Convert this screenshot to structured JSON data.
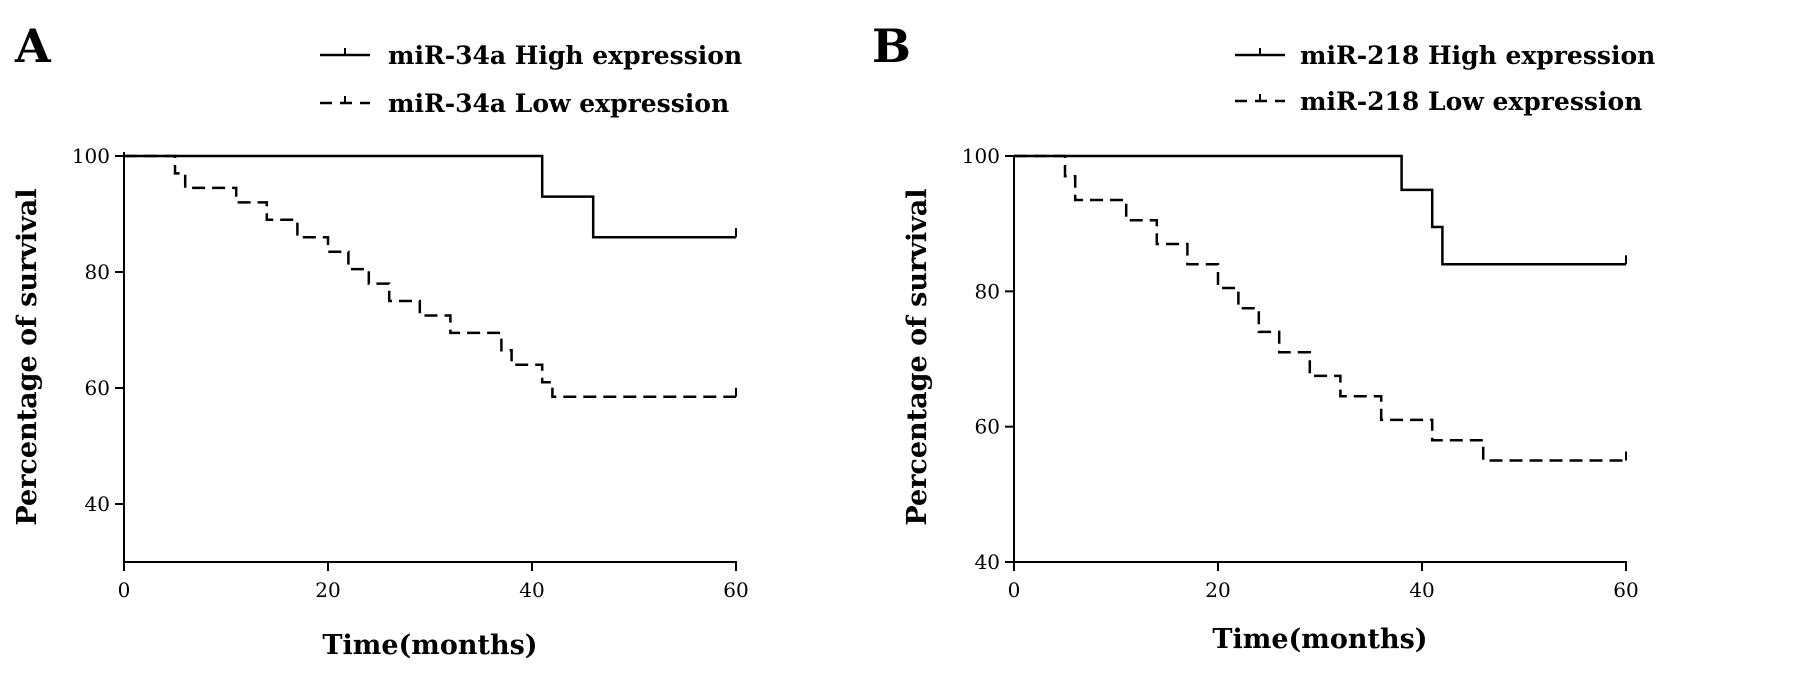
{
  "chart_data": [
    {
      "type": "line",
      "panel_label": "A",
      "xlabel": "Time(months)",
      "ylabel": "Percentage of survival",
      "xlim": [
        0,
        60
      ],
      "ylim": [
        30,
        100
      ],
      "xticks": [
        0,
        20,
        40,
        60
      ],
      "yticks": [
        40,
        60,
        80,
        100
      ],
      "legend_position": "top",
      "series": [
        {
          "name": "miR-34a High expression",
          "style": "solid",
          "step": true,
          "x": [
            0,
            41,
            46,
            60
          ],
          "y": [
            100,
            93,
            86,
            86
          ]
        },
        {
          "name": "miR-34a Low expression",
          "style": "dashed",
          "step": true,
          "x": [
            0,
            5,
            6,
            11,
            14,
            17,
            20,
            22,
            24,
            26,
            29,
            32,
            37,
            38,
            41,
            42,
            60
          ],
          "y": [
            100,
            97,
            94.5,
            92,
            89,
            86,
            83.5,
            80.5,
            78,
            75,
            72.5,
            69.5,
            66.5,
            64,
            61,
            58.5,
            58.5
          ]
        }
      ]
    },
    {
      "type": "line",
      "panel_label": "B",
      "xlabel": "Time(months)",
      "ylabel": "Percentage of survival",
      "xlim": [
        0,
        60
      ],
      "ylim": [
        40,
        100
      ],
      "xticks": [
        0,
        20,
        40,
        60
      ],
      "yticks": [
        40,
        60,
        80,
        100
      ],
      "legend_position": "top",
      "series": [
        {
          "name": "miR-218 High expression",
          "style": "solid",
          "step": true,
          "x": [
            0,
            38,
            41,
            42,
            60
          ],
          "y": [
            100,
            95,
            89.5,
            84,
            84
          ]
        },
        {
          "name": "miR-218 Low expression",
          "style": "dashed",
          "step": true,
          "x": [
            0,
            5,
            6,
            11,
            14,
            17,
            20,
            22,
            24,
            26,
            29,
            32,
            36,
            41,
            46,
            60
          ],
          "y": [
            100,
            97,
            93.5,
            90.5,
            87,
            84,
            80.5,
            77.5,
            74,
            71,
            67.5,
            64.5,
            61,
            58,
            55,
            55
          ]
        }
      ]
    }
  ]
}
